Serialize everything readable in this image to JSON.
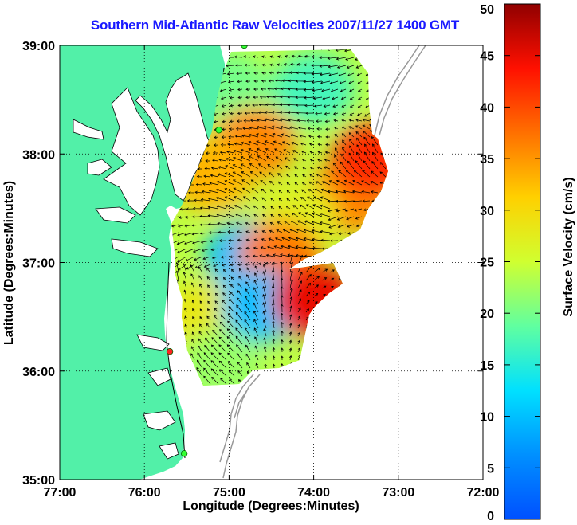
{
  "title": "Southern Mid-Atlantic Raw Velocities 2007/11/27 1400 GMT",
  "map": {
    "xlabel": "Longitude (Degrees:Minutes)",
    "ylabel": "Latitude (Degrees:Minutes)",
    "lon_range": [
      -77,
      -72
    ],
    "lat_range": [
      35,
      39
    ],
    "x_ticks": [
      {
        "value": -77,
        "label": "77:00"
      },
      {
        "value": -76,
        "label": "76:00"
      },
      {
        "value": -75,
        "label": "75:00"
      },
      {
        "value": -74,
        "label": "74:00"
      },
      {
        "value": -73,
        "label": "73:00"
      },
      {
        "value": -72,
        "label": "72:00"
      }
    ],
    "y_ticks": [
      {
        "value": 35,
        "label": "35:00"
      },
      {
        "value": 36,
        "label": "36:00"
      },
      {
        "value": 37,
        "label": "37:00"
      },
      {
        "value": 38,
        "label": "38:00"
      },
      {
        "value": 39,
        "label": "39:00"
      }
    ],
    "grid": "dotted",
    "land_color": "#52f0a8",
    "stations": [
      {
        "lon": -74.82,
        "lat": 39.0,
        "color": "#33ff33"
      },
      {
        "lon": -75.12,
        "lat": 38.22,
        "color": "#33ff33"
      },
      {
        "lon": -75.7,
        "lat": 36.18,
        "color": "#ff2222"
      },
      {
        "lon": -75.53,
        "lat": 35.24,
        "color": "#33ff33"
      }
    ]
  },
  "colorbar": {
    "label": "Surface Velocity (cm/s)",
    "ticks": [
      0,
      5,
      10,
      15,
      20,
      25,
      30,
      35,
      40,
      45,
      50
    ],
    "range": [
      0,
      50
    ],
    "colormap": "jet"
  },
  "chart_data": {
    "type": "heatmap",
    "title": "Southern Mid-Atlantic Raw Velocities 2007/11/27 1400 GMT",
    "xlabel": "Longitude (Degrees:Minutes)",
    "ylabel": "Latitude (Degrees:Minutes)",
    "variable": "Surface Velocity (cm/s)",
    "value_range": [
      0,
      50
    ],
    "regions": [
      {
        "lon": -75.0,
        "lat": 38.6,
        "speed": 20
      },
      {
        "lon": -74.7,
        "lat": 38.1,
        "speed": 36
      },
      {
        "lon": -75.2,
        "lat": 37.8,
        "speed": 33
      },
      {
        "lon": -74.0,
        "lat": 38.6,
        "speed": 17
      },
      {
        "lon": -73.6,
        "lat": 37.6,
        "speed": 36
      },
      {
        "lon": -73.3,
        "lat": 37.95,
        "speed": 42
      },
      {
        "lon": -74.2,
        "lat": 37.4,
        "speed": 27
      },
      {
        "lon": -74.8,
        "lat": 37.05,
        "speed": 10
      },
      {
        "lon": -74.4,
        "lat": 37.05,
        "speed": 37
      },
      {
        "lon": -75.3,
        "lat": 36.5,
        "speed": 28
      },
      {
        "lon": -74.6,
        "lat": 36.6,
        "speed": 10
      },
      {
        "lon": -74.0,
        "lat": 36.65,
        "speed": 45
      },
      {
        "lon": -75.1,
        "lat": 36.05,
        "speed": 22
      }
    ]
  }
}
